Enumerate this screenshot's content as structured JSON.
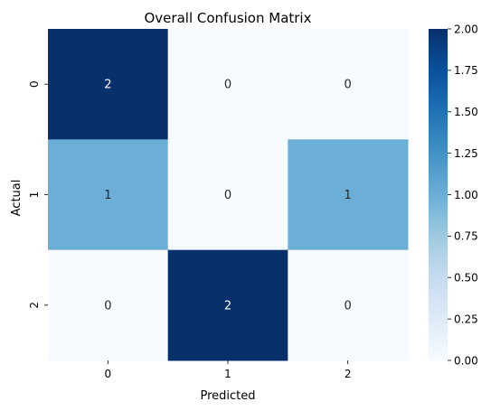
{
  "chart_data": {
    "type": "heatmap",
    "title": "Overall Confusion Matrix",
    "xlabel": "Predicted",
    "ylabel": "Actual",
    "x_categories": [
      "0",
      "1",
      "2"
    ],
    "y_categories": [
      "0",
      "1",
      "2"
    ],
    "values": [
      [
        2,
        0,
        0
      ],
      [
        1,
        0,
        1
      ],
      [
        0,
        2,
        0
      ]
    ],
    "colormap": "Blues",
    "vmin": 0,
    "vmax": 2,
    "colorbar_ticks": [
      "0.00",
      "0.25",
      "0.50",
      "0.75",
      "1.00",
      "1.25",
      "1.50",
      "1.75",
      "2.00"
    ],
    "colorbar_tick_values": [
      0,
      0.25,
      0.5,
      0.75,
      1.0,
      1.25,
      1.5,
      1.75,
      2.0
    ],
    "colors": {
      "min": "#f7fbff",
      "mid": "#6baed6",
      "max": "#08306b"
    }
  }
}
